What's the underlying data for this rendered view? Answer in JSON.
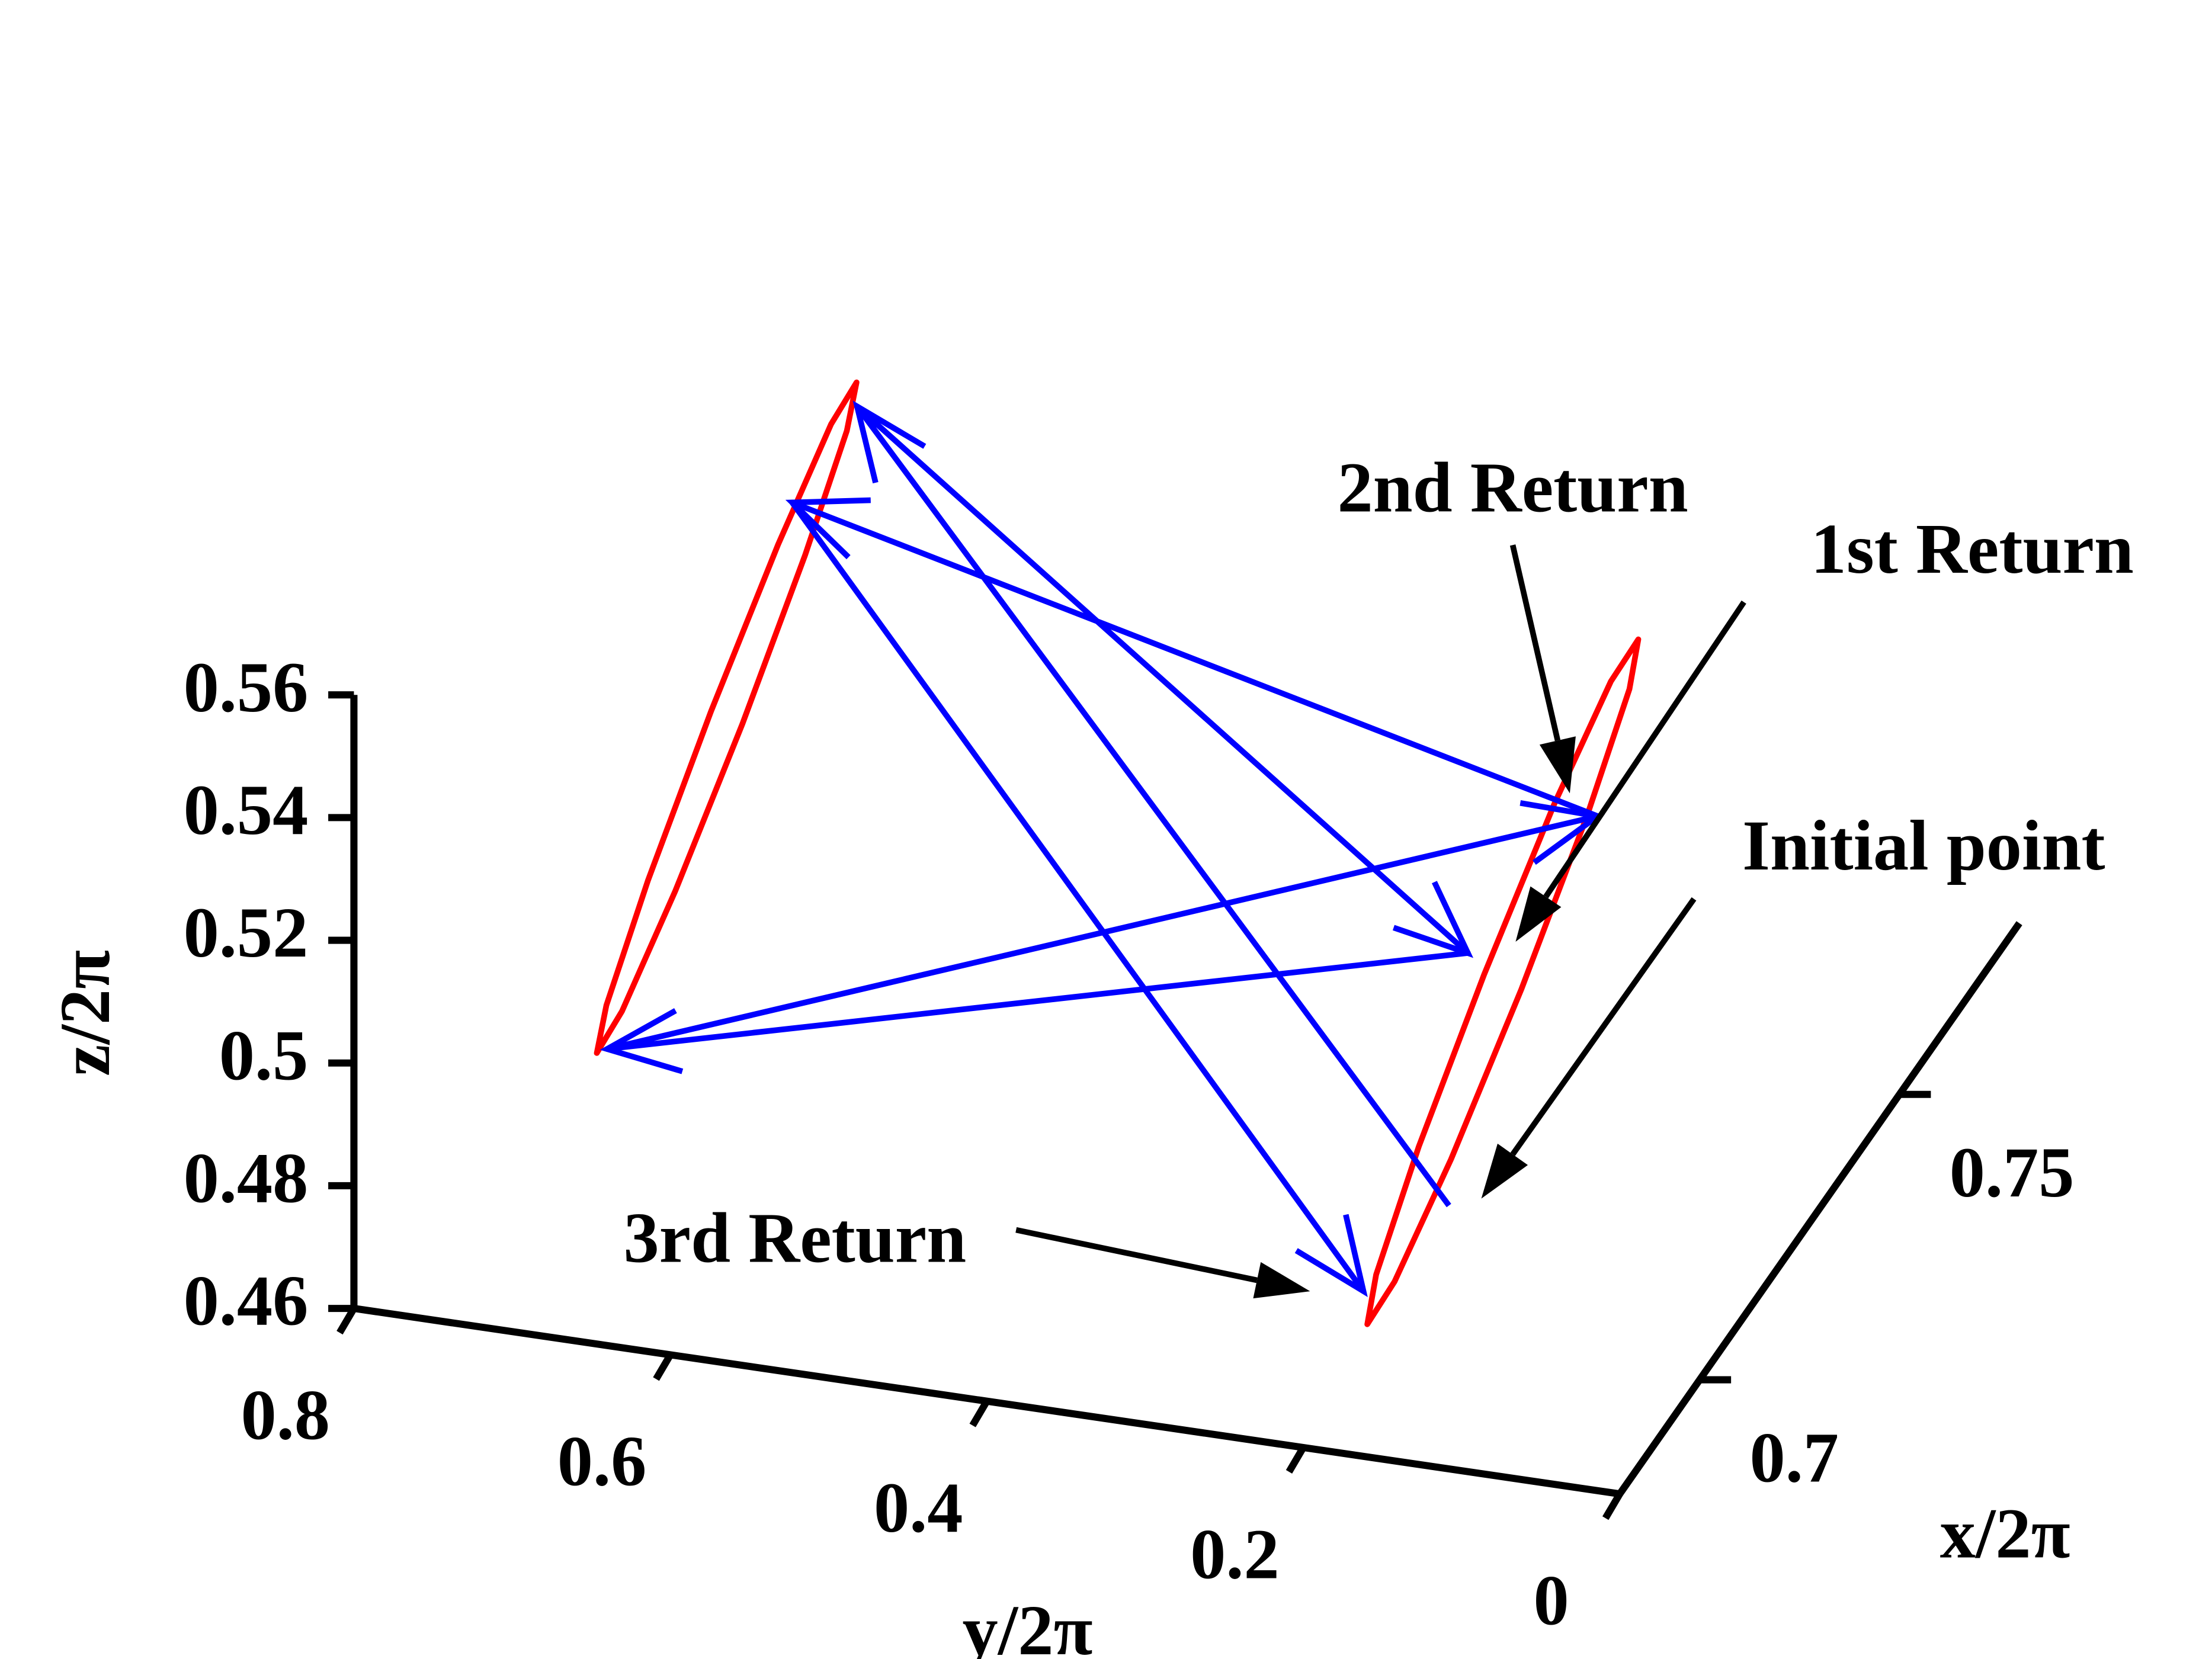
{
  "chart_data": {
    "type": "line3d",
    "xlabel": "x/2π",
    "ylabel": "y/2π",
    "zlabel": "z/2π",
    "xlim": [
      0.68,
      0.78
    ],
    "xticks": [
      0.7,
      0.75
    ],
    "ylim": [
      0.8,
      0
    ],
    "yticks": [
      0.8,
      0.6,
      0.4,
      0.2,
      0
    ],
    "zlim": [
      0.46,
      0.56
    ],
    "zticks": [
      0.46,
      0.48,
      0.5,
      0.52,
      0.54,
      0.56
    ],
    "series": [
      {
        "color": "#ff0000",
        "closed": true,
        "x": [
          0.72,
          0.72,
          0.72,
          0.72,
          0.72,
          0.72,
          0.72,
          0.72,
          0.72,
          0.72,
          0.72,
          0.72
        ],
        "y": [
          0.5834,
          0.5895,
          0.6159,
          0.6555,
          0.6979,
          0.7316,
          0.7475,
          0.7415,
          0.7151,
          0.6754,
          0.633,
          0.5994
        ],
        "z": [
          0.5819,
          0.5738,
          0.5525,
          0.5235,
          0.4947,
          0.4738,
          0.4664,
          0.4744,
          0.4958,
          0.5248,
          0.5536,
          0.5745
        ]
      },
      {
        "color": "#ff0000",
        "closed": true,
        "x": [
          0.72,
          0.72,
          0.72,
          0.72,
          0.72,
          0.72,
          0.72,
          0.72,
          0.72,
          0.72,
          0.72,
          0.72
        ],
        "y": [
          0.0893,
          0.0949,
          0.1219,
          0.1632,
          0.2076,
          0.2433,
          0.2606,
          0.255,
          0.228,
          0.1867,
          0.1423,
          0.1066
        ],
        "z": [
          0.5587,
          0.5504,
          0.5285,
          0.4989,
          0.4695,
          0.4482,
          0.4406,
          0.4489,
          0.4708,
          0.5004,
          0.5299,
          0.5512
        ]
      },
      {
        "color": "#0000ff",
        "arrows": true,
        "x": [
          0.72,
          0.72,
          0.72,
          0.72,
          0.72,
          0.72,
          0.72
        ],
        "y": [
          0.209,
          0.583,
          0.197,
          0.741,
          0.115,
          0.624,
          0.263
        ],
        "z": [
          0.4619,
          0.578,
          0.5035,
          0.4673,
          0.5289,
          0.5608,
          0.4459
        ]
      }
    ],
    "annotations": [
      "2nd Return",
      "1st Return",
      "Initial point",
      "3rd Return"
    ]
  }
}
